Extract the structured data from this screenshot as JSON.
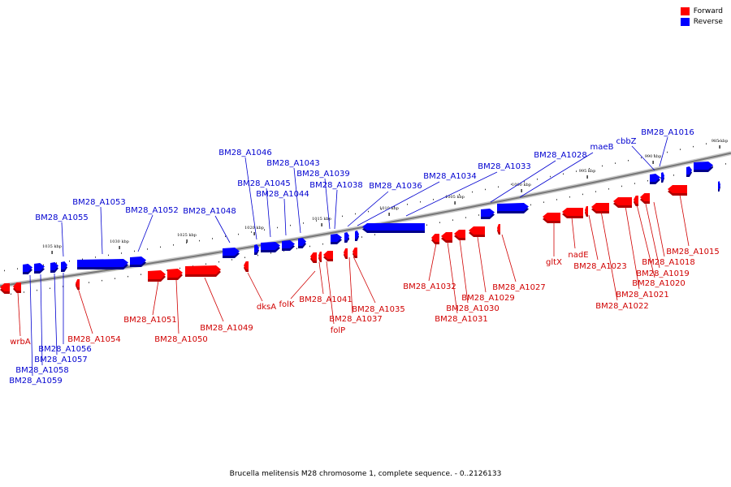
{
  "legend": {
    "forward": {
      "label": "Forward",
      "color": "#ff0000"
    },
    "reverse": {
      "label": "Reverse",
      "color": "#0000ff"
    }
  },
  "caption": "Brucella melitensis M28 chromosome 1, complete sequence. - 0..2126133",
  "ticks": [
    {
      "label": "985 kbp",
      "kbp": 985
    },
    {
      "label": "990 kbp",
      "kbp": 990
    },
    {
      "label": "995 kbp",
      "kbp": 995
    },
    {
      "label": "1000 kbp",
      "kbp": 1000
    },
    {
      "label": "1005 kbp",
      "kbp": 1005
    },
    {
      "label": "1010 kbp",
      "kbp": 1010
    },
    {
      "label": "1015 kbp",
      "kbp": 1015
    },
    {
      "label": "1020 kbp",
      "kbp": 1020
    },
    {
      "label": "1025 kbp",
      "kbp": 1025
    },
    {
      "label": "1030 kbp",
      "kbp": 1030
    },
    {
      "label": "1035 kbp",
      "kbp": 1035
    }
  ],
  "reverse_genes": [
    {
      "label": "BM28_A1016"
    },
    {
      "label": "cbbZ"
    },
    {
      "label": "maeB"
    },
    {
      "label": "BM28_A1028"
    },
    {
      "label": "BM28_A1033"
    },
    {
      "label": "BM28_A1034"
    },
    {
      "label": "BM28_A1036"
    },
    {
      "label": "BM28_A1038"
    },
    {
      "label": "BM28_A1039"
    },
    {
      "label": "BM28_A1043"
    },
    {
      "label": "BM28_A1044"
    },
    {
      "label": "BM28_A1045"
    },
    {
      "label": "BM28_A1046"
    },
    {
      "label": "BM28_A1048"
    },
    {
      "label": "BM28_A1052"
    },
    {
      "label": "BM28_A1053"
    },
    {
      "label": "BM28_A1055"
    },
    {
      "label": "BM28_A1056"
    },
    {
      "label": "BM28_A1057"
    },
    {
      "label": "BM28_A1058"
    },
    {
      "label": "BM28_A1059"
    }
  ],
  "forward_genes": [
    {
      "label": "BM28_A1015"
    },
    {
      "label": "BM28_A1018"
    },
    {
      "label": "BM28_A1019"
    },
    {
      "label": "BM28_A1020"
    },
    {
      "label": "BM28_A1021"
    },
    {
      "label": "BM28_A1022"
    },
    {
      "label": "BM28_A1023"
    },
    {
      "label": "nadE"
    },
    {
      "label": "gltX"
    },
    {
      "label": "BM28_A1027"
    },
    {
      "label": "BM28_A1029"
    },
    {
      "label": "BM28_A1030"
    },
    {
      "label": "BM28_A1031"
    },
    {
      "label": "BM28_A1032"
    },
    {
      "label": "BM28_A1035"
    },
    {
      "label": "BM28_A1037"
    },
    {
      "label": "folP"
    },
    {
      "label": "BM28_A1041"
    },
    {
      "label": "folK"
    },
    {
      "label": "dksA"
    },
    {
      "label": "BM28_A1049"
    },
    {
      "label": "BM28_A1050"
    },
    {
      "label": "BM28_A1051"
    },
    {
      "label": "BM28_A1054"
    },
    {
      "label": "wrbA"
    }
  ]
}
